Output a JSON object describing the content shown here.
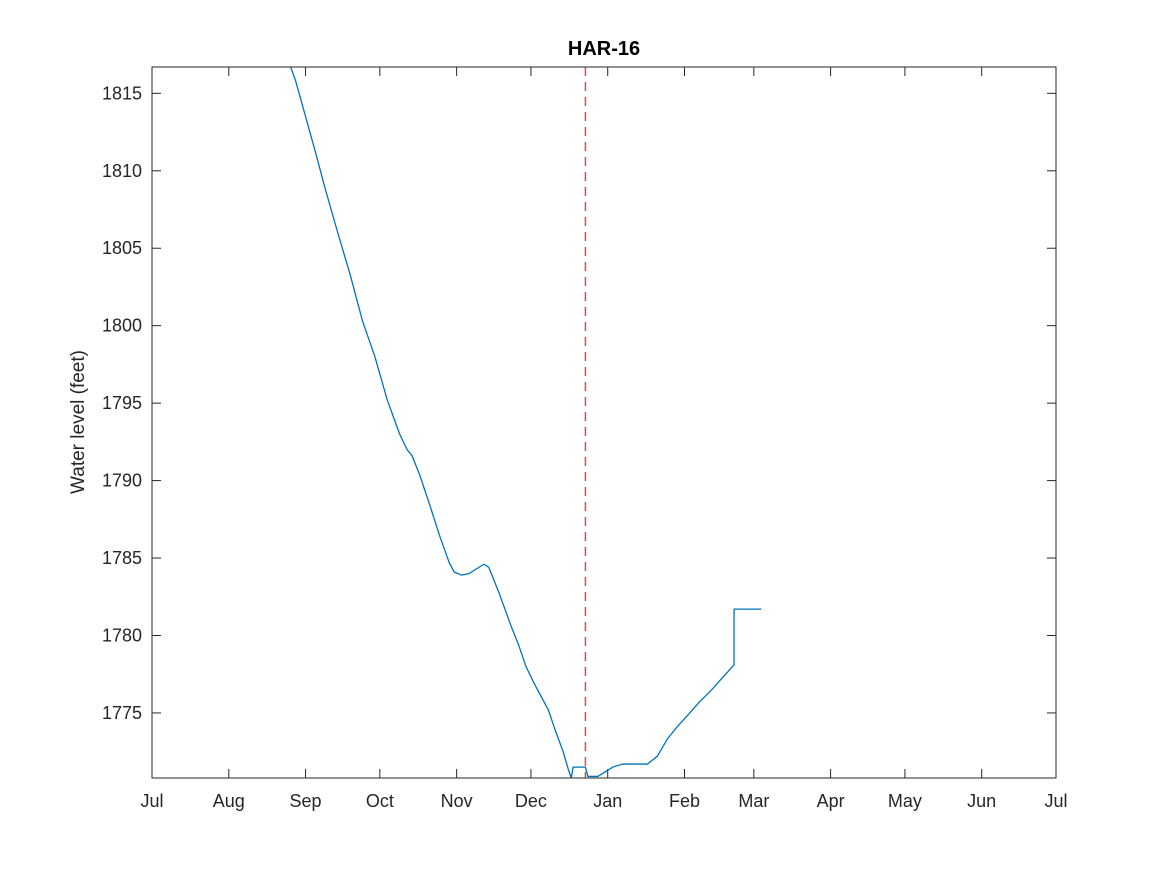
{
  "chart_data": {
    "type": "line",
    "title": "HAR-16",
    "xlabel": "",
    "ylabel": "Water level (feet)",
    "x_tick_labels": [
      "Jul",
      "Aug",
      "Sep",
      "Oct",
      "Nov",
      "Dec",
      "Jan",
      "Feb",
      "Mar",
      "Apr",
      "May",
      "Jun",
      "Jul"
    ],
    "x_tick_days": [
      0,
      31,
      62,
      92,
      123,
      153,
      184,
      215,
      243,
      274,
      304,
      335,
      365
    ],
    "xlim_days": [
      0,
      365
    ],
    "ylim": [
      1770.8,
      1816.7
    ],
    "y_ticks": [
      1775,
      1780,
      1785,
      1790,
      1795,
      1800,
      1805,
      1810,
      1815
    ],
    "grid": false,
    "series": [
      {
        "color": "#0072bd",
        "points": [
          [
            56,
            1816.7
          ],
          [
            58,
            1815.8
          ],
          [
            62,
            1813.5
          ],
          [
            66,
            1811.2
          ],
          [
            70,
            1808.8
          ],
          [
            75,
            1806.0
          ],
          [
            80,
            1803.3
          ],
          [
            85,
            1800.3
          ],
          [
            90,
            1798.0
          ],
          [
            95,
            1795.2
          ],
          [
            100,
            1793.0
          ],
          [
            103,
            1792.0
          ],
          [
            105,
            1791.6
          ],
          [
            108,
            1790.4
          ],
          [
            112,
            1788.5
          ],
          [
            116,
            1786.5
          ],
          [
            120,
            1784.7
          ],
          [
            122,
            1784.1
          ],
          [
            125,
            1783.9
          ],
          [
            128,
            1784.0
          ],
          [
            131,
            1784.3
          ],
          [
            134,
            1784.6
          ],
          [
            136,
            1784.4
          ],
          [
            140,
            1782.8
          ],
          [
            145,
            1780.6
          ],
          [
            148,
            1779.4
          ],
          [
            151,
            1778.0
          ],
          [
            154,
            1777.0
          ],
          [
            157,
            1776.1
          ],
          [
            160,
            1775.2
          ],
          [
            163,
            1773.8
          ],
          [
            166,
            1772.5
          ],
          [
            168,
            1771.4
          ],
          [
            169.3,
            1770.8
          ],
          [
            170,
            1771.5
          ],
          [
            175,
            1771.5
          ],
          [
            176,
            1770.9
          ],
          [
            180,
            1770.9
          ],
          [
            183,
            1771.2
          ],
          [
            186,
            1771.5
          ],
          [
            190,
            1771.7
          ],
          [
            195,
            1771.7
          ],
          [
            200,
            1771.7
          ],
          [
            204,
            1772.2
          ],
          [
            208,
            1773.3
          ],
          [
            212,
            1774.1
          ],
          [
            216,
            1774.8
          ],
          [
            221,
            1775.7
          ],
          [
            226,
            1776.5
          ],
          [
            231,
            1777.4
          ],
          [
            235,
            1778.1
          ],
          [
            235,
            1781.7
          ],
          [
            240,
            1781.7
          ],
          [
            246,
            1781.7
          ]
        ]
      },
      {
        "style": "dashed",
        "color": "#e04a4a",
        "vertical_x_day": 175
      }
    ]
  }
}
